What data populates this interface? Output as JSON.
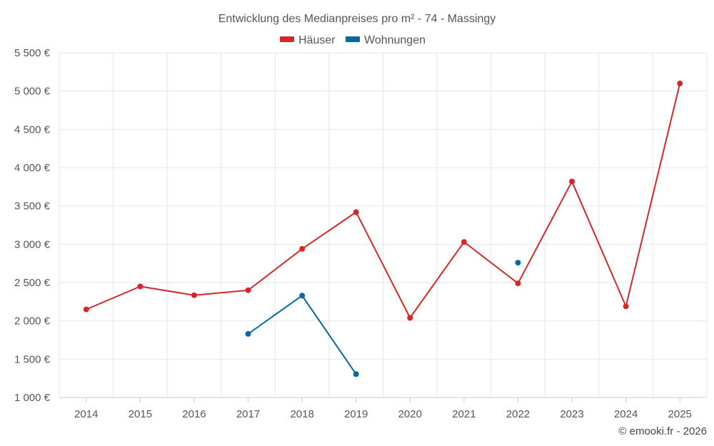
{
  "chart_data": {
    "type": "line",
    "title": "Entwicklung des Medianpreises pro m² - 74 - Massingy",
    "xlabel": "",
    "ylabel": "",
    "categories": [
      "2014",
      "2015",
      "2016",
      "2017",
      "2018",
      "2019",
      "2020",
      "2021",
      "2022",
      "2023",
      "2024",
      "2025"
    ],
    "ylim": [
      1000,
      5500
    ],
    "yticks": [
      1000,
      1500,
      2000,
      2500,
      3000,
      3500,
      4000,
      4500,
      5000,
      5500
    ],
    "ytick_labels": [
      "1 000 €",
      "1 500 €",
      "2 000 €",
      "2 500 €",
      "3 000 €",
      "3 500 €",
      "4 000 €",
      "4 500 €",
      "5 000 €",
      "5 500 €"
    ],
    "grid": true,
    "legend_position": "top-center",
    "series": [
      {
        "name": "Häuser",
        "color": "#d62728",
        "values": [
          2150,
          2450,
          2335,
          2400,
          2940,
          3420,
          2040,
          3030,
          2490,
          3820,
          2190,
          5100
        ]
      },
      {
        "name": "Wohnungen",
        "color": "#0868a6",
        "values": [
          null,
          null,
          null,
          1830,
          2330,
          1305,
          null,
          null,
          2760,
          null,
          null,
          null
        ]
      }
    ]
  },
  "credit": "© emooki.fr - 2026"
}
